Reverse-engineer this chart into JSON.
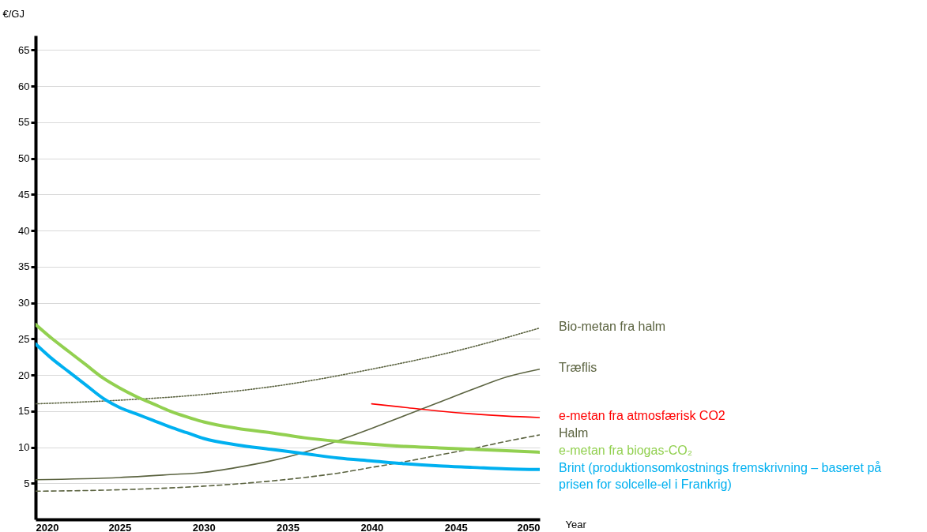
{
  "chart_data": {
    "type": "line",
    "xlabel": "Year",
    "ylabel": "€/GJ",
    "xlim": [
      2020,
      2050
    ],
    "xticks": [
      2020,
      2025,
      2030,
      2035,
      2040,
      2045,
      2050
    ],
    "ylim": [
      0,
      67
    ],
    "yticks": [
      5,
      10,
      15,
      20,
      25,
      30,
      35,
      40,
      45,
      50,
      55,
      60,
      65
    ],
    "grid": "y",
    "legend": false,
    "marker": "none",
    "series": [
      {
        "name": "Bio-metan fra halm",
        "color": "#5b6340",
        "line_style": "dotted",
        "x": [
          2020,
          2025,
          2030,
          2035,
          2040,
          2045,
          2050
        ],
        "values": [
          16,
          16.5,
          17.3,
          18.7,
          20.8,
          23.3,
          26.5
        ]
      },
      {
        "name": "Træflis",
        "color": "#5b6340",
        "line_style": "solid",
        "x": [
          2020,
          2025,
          2028,
          2030,
          2032,
          2034,
          2036,
          2038,
          2040,
          2042,
          2044,
          2046,
          2048,
          2050
        ],
        "values": [
          5.5,
          5.8,
          6.2,
          6.5,
          7.2,
          8.1,
          9.3,
          10.9,
          12.6,
          14.4,
          16.2,
          18,
          19.7,
          20.8
        ]
      },
      {
        "name": "e-metan fra atmosfærisk CO2",
        "color": "#ff0000",
        "line_style": "solid",
        "x": [
          2040,
          2042,
          2044,
          2046,
          2048,
          2050
        ],
        "values": [
          16,
          15.5,
          15,
          14.6,
          14.3,
          14.1
        ]
      },
      {
        "name": "Halm",
        "color": "#5b6340",
        "line_style": "dashed",
        "x": [
          2020,
          2025,
          2030,
          2033,
          2036,
          2038,
          2040,
          2042,
          2044,
          2046,
          2048,
          2050
        ],
        "values": [
          3.9,
          4.1,
          4.6,
          5.1,
          5.8,
          6.4,
          7.2,
          8,
          8.9,
          9.8,
          10.8,
          11.7
        ]
      },
      {
        "name": "e-metan fra biogas-CO₂",
        "color": "#92d050",
        "line_style": "solid",
        "x": [
          2020,
          2021,
          2022,
          2023,
          2024,
          2025,
          2026,
          2027,
          2028,
          2029,
          2030,
          2032,
          2034,
          2036,
          2038,
          2040,
          2042,
          2044,
          2046,
          2048,
          2050
        ],
        "values": [
          27,
          25,
          23.2,
          21.4,
          19.6,
          18.2,
          17,
          16,
          15,
          14.2,
          13.5,
          12.6,
          12,
          11.3,
          10.8,
          10.4,
          10.1,
          9.9,
          9.7,
          9.5,
          9.3
        ]
      },
      {
        "name": "Brint (produktionsomkostnings fremskrivning – baseret på prisen for solcelle-el i Frankrig)",
        "color": "#00b0f0",
        "line_style": "solid",
        "x": [
          2020,
          2021,
          2022,
          2023,
          2024,
          2025,
          2026,
          2027,
          2028,
          2029,
          2030,
          2032,
          2034,
          2036,
          2038,
          2040,
          2042,
          2044,
          2046,
          2048,
          2050
        ],
        "values": [
          24.3,
          22.2,
          20.4,
          18.6,
          16.8,
          15.5,
          14.6,
          13.7,
          12.8,
          12,
          11.2,
          10.3,
          9.7,
          9.1,
          8.5,
          8.1,
          7.7,
          7.4,
          7.2,
          7,
          6.9
        ]
      }
    ]
  }
}
